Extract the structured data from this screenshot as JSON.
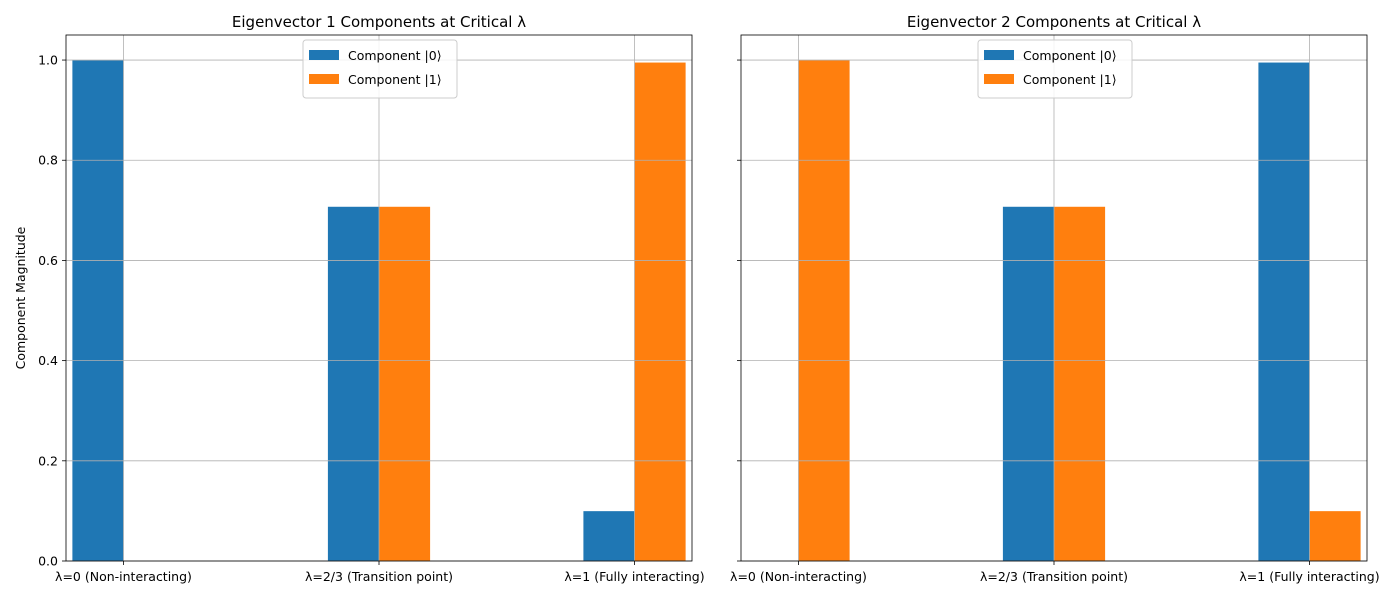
{
  "colors": {
    "series0": "#1f77b4",
    "series1": "#ff7f0e",
    "grid": "#b0b0b0",
    "axis": "#000000",
    "legend_border": "#cccccc"
  },
  "chart_data": [
    {
      "type": "bar",
      "title": "Eigenvector 1 Components at Critical λ",
      "xlabel": "",
      "ylabel": "Component Magnitude",
      "categories": [
        "λ=0 (Non-interacting)",
        "λ=2/3 (Transition point)",
        "λ=1 (Fully interacting)"
      ],
      "series": [
        {
          "name": "Component |0⟩",
          "values": [
            1.0,
            0.7071,
            0.0995
          ]
        },
        {
          "name": "Component |1⟩",
          "values": [
            0.0,
            0.7071,
            0.995
          ]
        }
      ],
      "ylim": [
        0,
        1.05
      ],
      "yticks": [
        "0.0",
        "0.2",
        "0.4",
        "0.6",
        "0.8",
        "1.0"
      ],
      "grid": true,
      "legend": "upper center"
    },
    {
      "type": "bar",
      "title": "Eigenvector 2 Components at Critical λ",
      "xlabel": "",
      "ylabel": "",
      "categories": [
        "λ=0 (Non-interacting)",
        "λ=2/3 (Transition point)",
        "λ=1 (Fully interacting)"
      ],
      "series": [
        {
          "name": "Component |0⟩",
          "values": [
            0.0,
            0.7071,
            0.995
          ]
        },
        {
          "name": "Component |1⟩",
          "values": [
            1.0,
            0.7071,
            0.0995
          ]
        }
      ],
      "ylim": [
        0,
        1.05
      ],
      "yticks": [],
      "grid": true,
      "legend": "upper center"
    }
  ]
}
